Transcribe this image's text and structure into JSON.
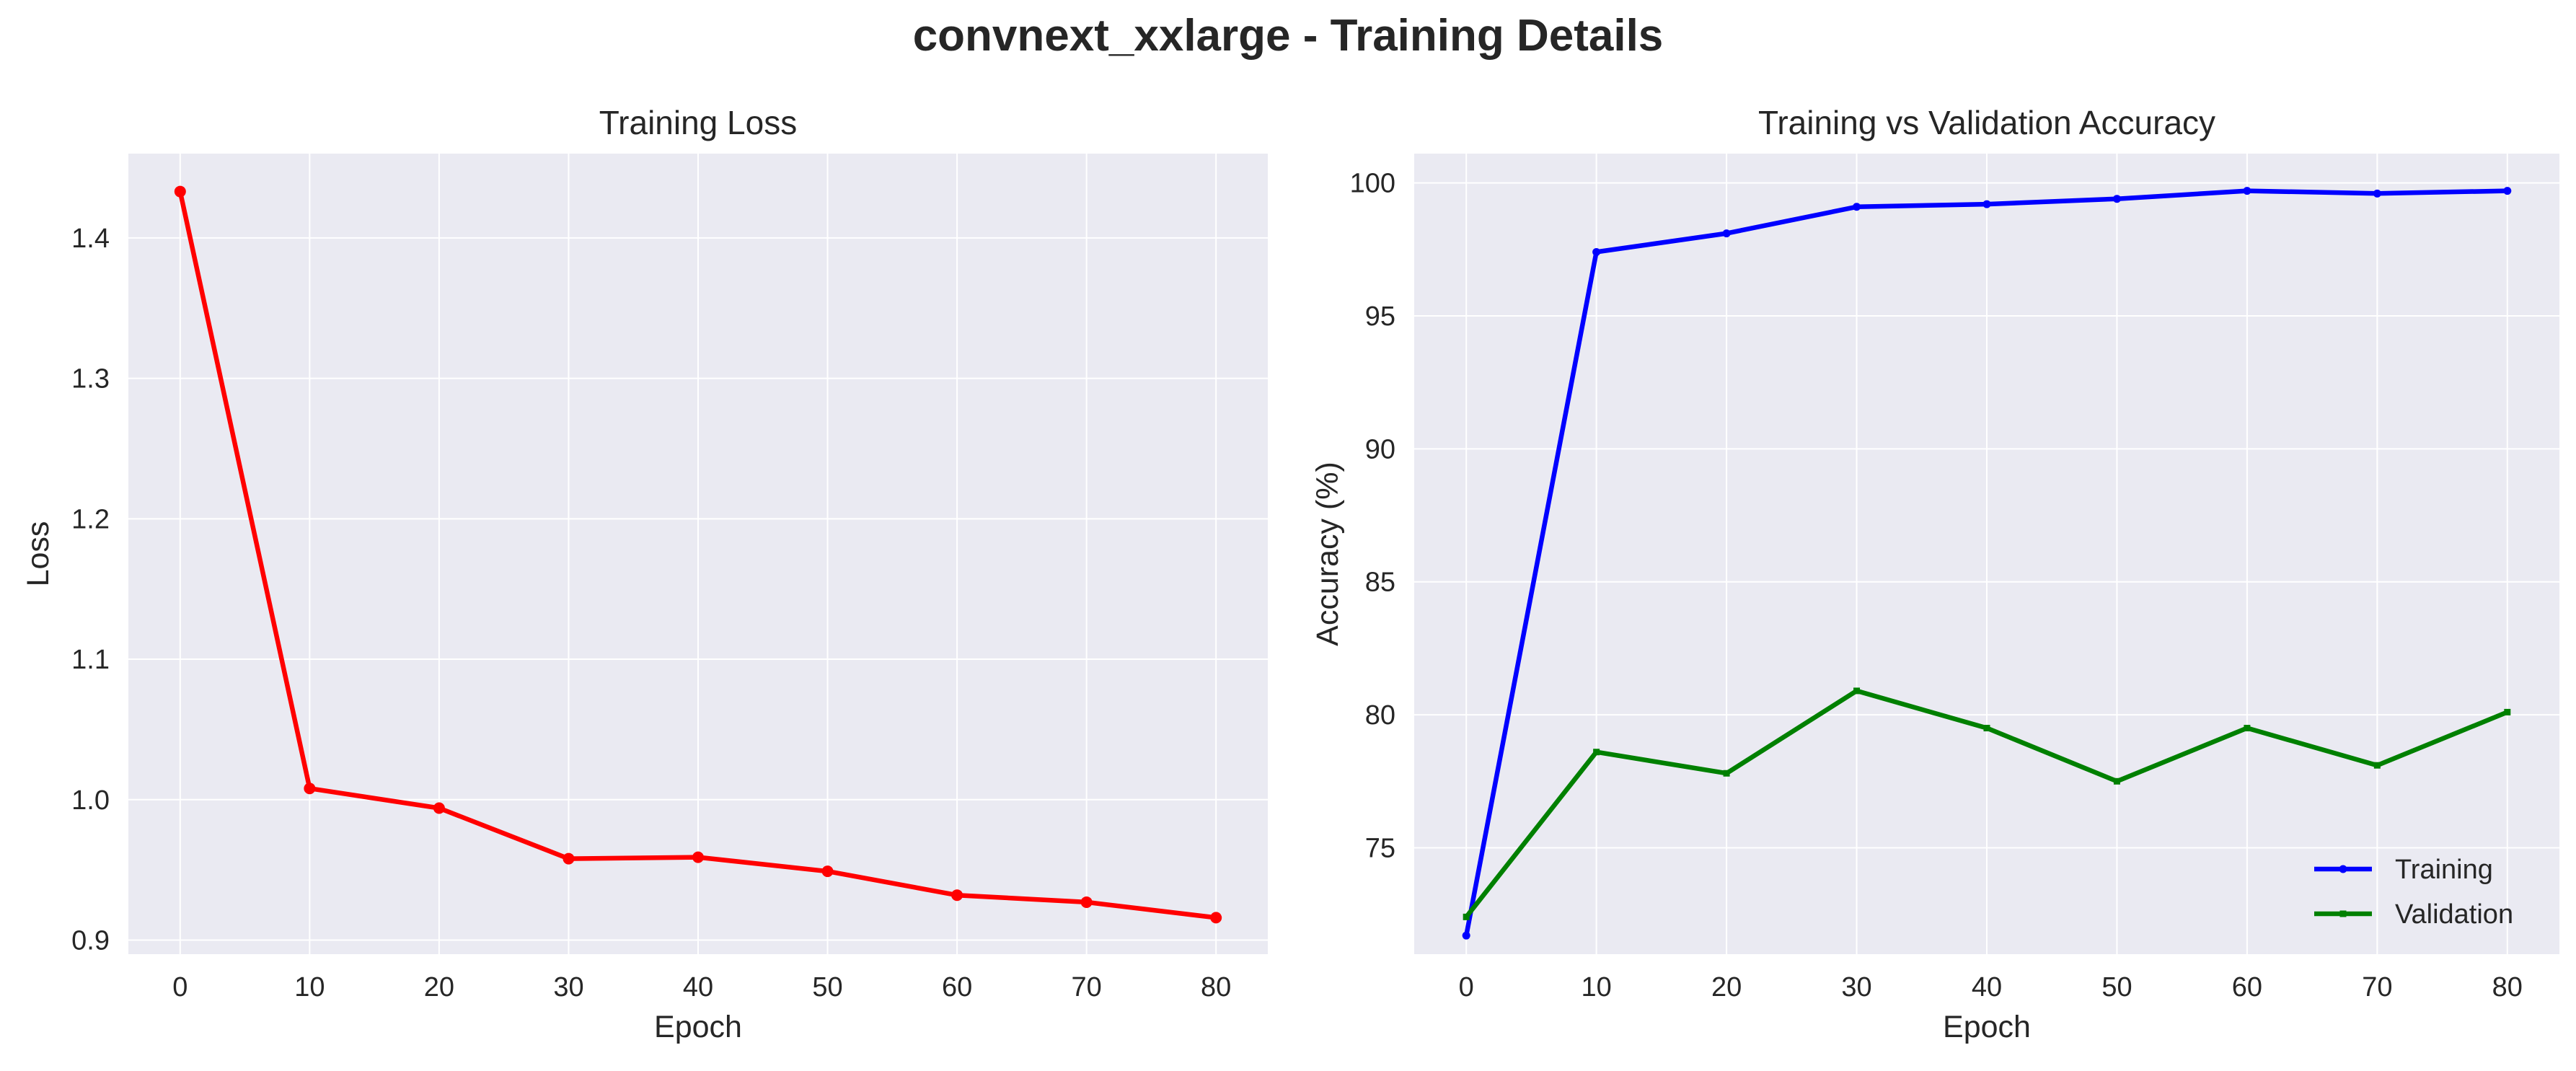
{
  "suptitle": "convnext_xxlarge - Training Details",
  "chart_data": [
    {
      "type": "line",
      "title": "Training Loss",
      "xlabel": "Epoch",
      "ylabel": "Loss",
      "x": [
        0,
        10,
        20,
        30,
        40,
        50,
        60,
        70,
        80
      ],
      "series": [
        {
          "values": [
            1.433,
            1.008,
            0.994,
            0.958,
            0.959,
            0.949,
            0.932,
            0.927,
            0.916
          ],
          "color": "#ff0000",
          "marker": "circle"
        }
      ],
      "xlim": [
        -4,
        84
      ],
      "ylim": [
        0.89,
        1.46
      ],
      "xticks": [
        0,
        10,
        20,
        30,
        40,
        50,
        60,
        70,
        80
      ],
      "yticks": [
        0.9,
        1.0,
        1.1,
        1.2,
        1.3,
        1.4
      ],
      "ytick_labels": [
        "0.9",
        "1.0",
        "1.1",
        "1.2",
        "1.3",
        "1.4"
      ],
      "grid": true
    },
    {
      "type": "line",
      "title": "Training vs Validation Accuracy",
      "xlabel": "Epoch",
      "ylabel": "Accuracy (%)",
      "x": [
        0,
        10,
        20,
        30,
        40,
        50,
        60,
        70,
        80
      ],
      "series": [
        {
          "name": "Training",
          "values": [
            71.7,
            97.4,
            98.1,
            99.1,
            99.2,
            99.4,
            99.7,
            99.6,
            99.7
          ],
          "color": "#0000ff",
          "marker": "circle"
        },
        {
          "name": "Validation",
          "values": [
            72.4,
            78.6,
            77.8,
            80.9,
            79.5,
            77.5,
            79.5,
            78.1,
            80.1
          ],
          "color": "#008000",
          "marker": "square"
        }
      ],
      "xlim": [
        -4,
        84
      ],
      "ylim": [
        71.0,
        101.1
      ],
      "xticks": [
        0,
        10,
        20,
        30,
        40,
        50,
        60,
        70,
        80
      ],
      "yticks": [
        75,
        80,
        85,
        90,
        95,
        100
      ],
      "ytick_labels": [
        "75",
        "80",
        "85",
        "90",
        "95",
        "100"
      ],
      "legend": "bottom-right",
      "grid": true
    }
  ]
}
